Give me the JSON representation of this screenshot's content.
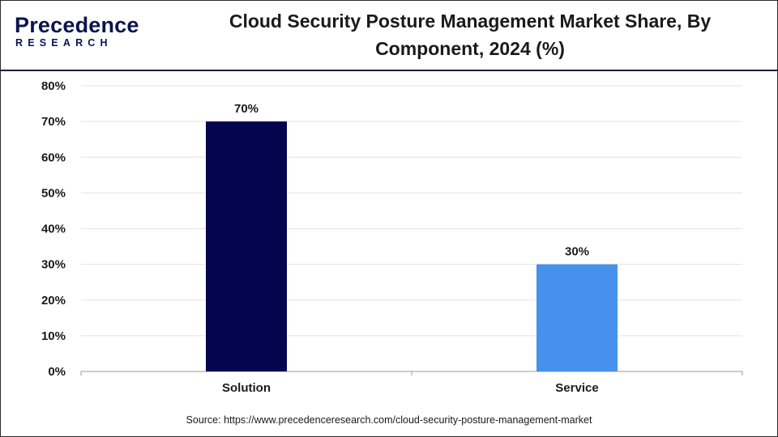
{
  "header": {
    "logo_word": "Precedence",
    "logo_sub": "RESEARCH",
    "title_line1": "Cloud Security Posture Management Market Share, By",
    "title_line2": "Component, 2024 (%)"
  },
  "source": "Source: https://www.precedenceresearch.com/cloud-security-posture-management-market",
  "chart_data": {
    "type": "bar",
    "title": "Cloud Security Posture Management Market Share, By Component, 2024 (%)",
    "categories": [
      "Solution",
      "Service"
    ],
    "values": [
      70,
      30
    ],
    "data_labels": [
      "70%",
      "30%"
    ],
    "colors": [
      "#03064f",
      "#4791ec"
    ],
    "ylim": [
      0,
      80
    ],
    "yticks": [
      0,
      10,
      20,
      30,
      40,
      50,
      60,
      70,
      80
    ],
    "ytick_labels": [
      "0%",
      "10%",
      "20%",
      "30%",
      "40%",
      "50%",
      "60%",
      "70%",
      "80%"
    ],
    "grid": true,
    "legend": "none"
  }
}
